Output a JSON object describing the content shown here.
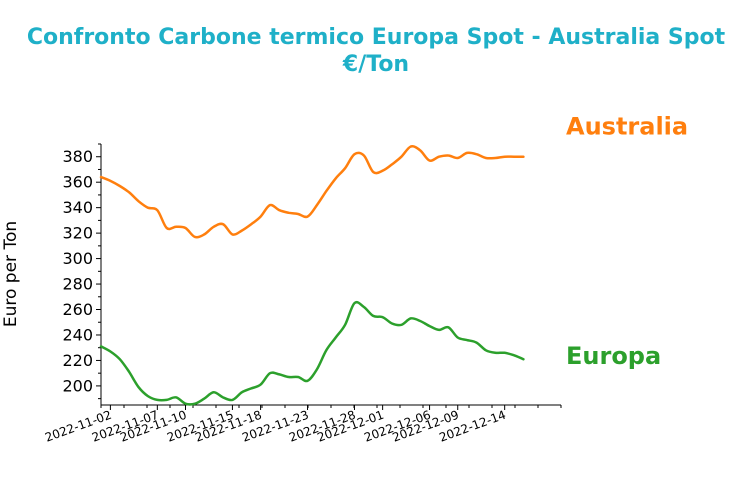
{
  "chart_data": {
    "type": "line",
    "title_line1": "Confronto Carbone termico Europa Spot - Australia Spot",
    "title_line2": "€/Ton",
    "xlabel": "",
    "ylabel": "Euro per Ton",
    "ylim": [
      185,
      390
    ],
    "yticks": [
      200,
      220,
      240,
      260,
      280,
      300,
      320,
      340,
      360,
      380
    ],
    "x_range": [
      "2022-11-01",
      "2022-12-20"
    ],
    "xticks": [
      "2022-11-02",
      "2022-11-07",
      "2022-11-10",
      "2022-11-15",
      "2022-11-18",
      "2022-11-23",
      "2022-11-28",
      "2022-12-01",
      "2022-12-06",
      "2022-12-09",
      "2022-12-14"
    ],
    "grid": false,
    "series": [
      {
        "name": "Australia",
        "color": "#ff7f0e",
        "x": [
          "2022-11-01",
          "2022-11-02",
          "2022-11-03",
          "2022-11-04",
          "2022-11-05",
          "2022-11-06",
          "2022-11-07",
          "2022-11-08",
          "2022-11-09",
          "2022-11-10",
          "2022-11-11",
          "2022-11-12",
          "2022-11-13",
          "2022-11-14",
          "2022-11-15",
          "2022-11-16",
          "2022-11-17",
          "2022-11-18",
          "2022-11-19",
          "2022-11-20",
          "2022-11-21",
          "2022-11-22",
          "2022-11-23",
          "2022-11-24",
          "2022-11-25",
          "2022-11-26",
          "2022-11-27",
          "2022-11-28",
          "2022-11-29",
          "2022-11-30",
          "2022-12-01",
          "2022-12-02",
          "2022-12-03",
          "2022-12-04",
          "2022-12-05",
          "2022-12-06",
          "2022-12-07",
          "2022-12-08",
          "2022-12-09",
          "2022-12-10",
          "2022-12-11",
          "2022-12-12",
          "2022-12-13",
          "2022-12-14",
          "2022-12-15",
          "2022-12-16"
        ],
        "values": [
          364,
          361,
          357,
          352,
          345,
          340,
          338,
          324,
          325,
          324,
          317,
          319,
          325,
          327,
          319,
          322,
          327,
          333,
          342,
          338,
          336,
          335,
          333,
          342,
          353,
          363,
          371,
          382,
          381,
          368,
          369,
          374,
          380,
          388,
          385,
          377,
          380,
          381,
          379,
          383,
          382,
          379,
          379,
          380,
          380,
          380
        ]
      },
      {
        "name": "Europa",
        "color": "#2ca02c",
        "x": [
          "2022-11-01",
          "2022-11-02",
          "2022-11-03",
          "2022-11-04",
          "2022-11-05",
          "2022-11-06",
          "2022-11-07",
          "2022-11-08",
          "2022-11-09",
          "2022-11-10",
          "2022-11-11",
          "2022-11-12",
          "2022-11-13",
          "2022-11-14",
          "2022-11-15",
          "2022-11-16",
          "2022-11-17",
          "2022-11-18",
          "2022-11-19",
          "2022-11-20",
          "2022-11-21",
          "2022-11-22",
          "2022-11-23",
          "2022-11-24",
          "2022-11-25",
          "2022-11-26",
          "2022-11-27",
          "2022-11-28",
          "2022-11-29",
          "2022-11-30",
          "2022-12-01",
          "2022-12-02",
          "2022-12-03",
          "2022-12-04",
          "2022-12-05",
          "2022-12-06",
          "2022-12-07",
          "2022-12-08",
          "2022-12-09",
          "2022-12-10",
          "2022-12-11",
          "2022-12-12",
          "2022-12-13",
          "2022-12-14",
          "2022-12-15",
          "2022-12-16"
        ],
        "values": [
          231,
          227,
          221,
          211,
          199,
          192,
          189,
          189,
          191,
          186,
          186,
          190,
          195,
          191,
          189,
          195,
          198,
          201,
          210,
          209,
          207,
          207,
          204,
          213,
          228,
          238,
          248,
          265,
          262,
          255,
          254,
          249,
          248,
          253,
          251,
          247,
          244,
          246,
          238,
          236,
          234,
          228,
          226,
          226,
          224,
          221
        ]
      }
    ]
  }
}
